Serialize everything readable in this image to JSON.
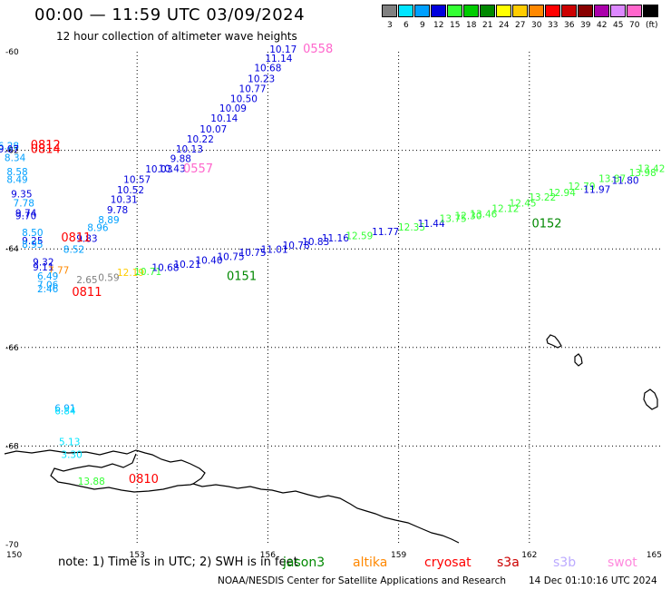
{
  "title": "00:00 — 11:59 UTC 03/09/2024",
  "subtitle": "12 hour collection of altimeter wave heights",
  "legend": {
    "unit": "(ft)",
    "entries": [
      {
        "label": "3",
        "color": "#808080"
      },
      {
        "label": "6",
        "color": "#00e5ff"
      },
      {
        "label": "9",
        "color": "#00a0ff"
      },
      {
        "label": "12",
        "color": "#0000dd"
      },
      {
        "label": "15",
        "color": "#33ff33"
      },
      {
        "label": "18",
        "color": "#00cc00"
      },
      {
        "label": "21",
        "color": "#008800"
      },
      {
        "label": "24",
        "color": "#ffff00"
      },
      {
        "label": "27",
        "color": "#ffcc00"
      },
      {
        "label": "30",
        "color": "#ff8800"
      },
      {
        "label": "33",
        "color": "#ff0000"
      },
      {
        "label": "36",
        "color": "#cc0000"
      },
      {
        "label": "39",
        "color": "#880000"
      },
      {
        "label": "42",
        "color": "#aa00aa"
      },
      {
        "label": "45",
        "color": "#dd88ff"
      },
      {
        "label": "70",
        "color": "#ff66cc"
      },
      {
        "label": "",
        "color": "#000000"
      }
    ]
  },
  "axes": {
    "lat_ticks": [
      "-60",
      "-62",
      "-64",
      "-66",
      "-68",
      "-70"
    ],
    "lon_ticks": [
      "150",
      "153",
      "156",
      "159",
      "162",
      "165"
    ]
  },
  "map": {
    "lon_range": [
      150,
      165
    ],
    "lat_range": [
      -70,
      -60
    ],
    "grid": "dotted"
  },
  "readings": [
    {
      "t": "10.17",
      "lon": 156.35,
      "lat": -60.02,
      "c": "#0000dd"
    },
    {
      "t": "11.14",
      "lon": 156.25,
      "lat": -60.2,
      "c": "#0000dd"
    },
    {
      "t": "10.68",
      "lon": 156.0,
      "lat": -60.4,
      "c": "#0000dd"
    },
    {
      "t": "10.23",
      "lon": 155.85,
      "lat": -60.62,
      "c": "#0000dd"
    },
    {
      "t": "10.77",
      "lon": 155.65,
      "lat": -60.82,
      "c": "#0000dd"
    },
    {
      "t": "10.50",
      "lon": 155.45,
      "lat": -61.02,
      "c": "#0000dd"
    },
    {
      "t": "10.09",
      "lon": 155.2,
      "lat": -61.22,
      "c": "#0000dd"
    },
    {
      "t": "10.14",
      "lon": 155.0,
      "lat": -61.42,
      "c": "#0000dd"
    },
    {
      "t": "10.07",
      "lon": 154.75,
      "lat": -61.64,
      "c": "#0000dd"
    },
    {
      "t": "10.22",
      "lon": 154.45,
      "lat": -61.84,
      "c": "#0000dd"
    },
    {
      "t": "10.13",
      "lon": 154.2,
      "lat": -62.04,
      "c": "#0000dd"
    },
    {
      "t": "9.88",
      "lon": 154.0,
      "lat": -62.24,
      "c": "#0000dd"
    },
    {
      "t": "10.43",
      "lon": 153.8,
      "lat": -62.44,
      "c": "#0000dd"
    },
    {
      "t": "10.03",
      "lon": 153.5,
      "lat": -62.45,
      "c": "#0000dd"
    },
    {
      "t": "10.57",
      "lon": 153.0,
      "lat": -62.66,
      "c": "#0000dd"
    },
    {
      "t": "10.52",
      "lon": 152.85,
      "lat": -62.87,
      "c": "#0000dd"
    },
    {
      "t": "10.31",
      "lon": 152.7,
      "lat": -63.07,
      "c": "#0000dd"
    },
    {
      "t": "9.78",
      "lon": 152.55,
      "lat": -63.28,
      "c": "#0000dd"
    },
    {
      "t": "8.89",
      "lon": 152.35,
      "lat": -63.48,
      "c": "#00a0ff"
    },
    {
      "t": "8.96",
      "lon": 152.1,
      "lat": -63.64,
      "c": "#00a0ff"
    },
    {
      "t": "9.83",
      "lon": 151.85,
      "lat": -63.86,
      "c": "#0000dd"
    },
    {
      "t": "8.52",
      "lon": 151.55,
      "lat": -64.08,
      "c": "#00a0ff"
    },
    {
      "t": "6.28",
      "lon": 150.05,
      "lat": -61.98,
      "c": "#00a0ff"
    },
    {
      "t": "9.07",
      "lon": 150.05,
      "lat": -62.04,
      "c": "#0000dd"
    },
    {
      "t": "8.34",
      "lon": 150.2,
      "lat": -62.22,
      "c": "#00a0ff"
    },
    {
      "t": "8.58",
      "lon": 150.25,
      "lat": -62.5,
      "c": "#00a0ff"
    },
    {
      "t": "8.49",
      "lon": 150.25,
      "lat": -62.66,
      "c": "#00a0ff"
    },
    {
      "t": "9.35",
      "lon": 150.35,
      "lat": -62.96,
      "c": "#0000dd"
    },
    {
      "t": "7.78",
      "lon": 150.4,
      "lat": -63.14,
      "c": "#00a0ff"
    },
    {
      "t": "9.74",
      "lon": 150.45,
      "lat": -63.34,
      "c": "#0000dd"
    },
    {
      "t": "9.70",
      "lon": 150.45,
      "lat": -63.4,
      "c": "#0000dd"
    },
    {
      "t": "8.50",
      "lon": 150.6,
      "lat": -63.74,
      "c": "#00a0ff"
    },
    {
      "t": "9.25",
      "lon": 150.6,
      "lat": -63.9,
      "c": "#0000dd"
    },
    {
      "t": "8.95",
      "lon": 150.6,
      "lat": -63.98,
      "c": "#00a0ff"
    },
    {
      "t": "9.32",
      "lon": 150.85,
      "lat": -64.34,
      "c": "#0000dd"
    },
    {
      "t": "9.11",
      "lon": 150.85,
      "lat": -64.44,
      "c": "#0000dd"
    },
    {
      "t": "7.77",
      "lon": 151.2,
      "lat": -64.5,
      "c": "#ff8800"
    },
    {
      "t": "6.49",
      "lon": 150.95,
      "lat": -64.62,
      "c": "#00a0ff"
    },
    {
      "t": "7.06",
      "lon": 150.95,
      "lat": -64.8,
      "c": "#00a0ff"
    },
    {
      "t": "2.46",
      "lon": 150.95,
      "lat": -64.88,
      "c": "#00a0ff"
    },
    {
      "t": "2.65",
      "lon": 151.85,
      "lat": -64.7,
      "c": "#808080"
    },
    {
      "t": "0.59",
      "lon": 152.35,
      "lat": -64.65,
      "c": "#808080"
    },
    {
      "t": "12.19",
      "lon": 152.85,
      "lat": -64.55,
      "c": "#ffcc00"
    },
    {
      "t": "10.71",
      "lon": 153.25,
      "lat": -64.53,
      "c": "#33ff33"
    },
    {
      "t": "10.68",
      "lon": 153.65,
      "lat": -64.45,
      "c": "#0000dd"
    },
    {
      "t": "10.21",
      "lon": 154.15,
      "lat": -64.38,
      "c": "#0000dd"
    },
    {
      "t": "10.40",
      "lon": 154.65,
      "lat": -64.3,
      "c": "#0000dd"
    },
    {
      "t": "10.75",
      "lon": 155.15,
      "lat": -64.23,
      "c": "#0000dd"
    },
    {
      "t": "10.75",
      "lon": 155.65,
      "lat": -64.14,
      "c": "#0000dd"
    },
    {
      "t": "11.01",
      "lon": 156.15,
      "lat": -64.08,
      "c": "#0000dd"
    },
    {
      "t": "10.78",
      "lon": 156.65,
      "lat": -64.0,
      "c": "#0000dd"
    },
    {
      "t": "10.83",
      "lon": 157.1,
      "lat": -63.92,
      "c": "#0000dd"
    },
    {
      "t": "11.16",
      "lon": 157.55,
      "lat": -63.85,
      "c": "#0000dd"
    },
    {
      "t": "12.59",
      "lon": 158.1,
      "lat": -63.8,
      "c": "#33ff33"
    },
    {
      "t": "11.77",
      "lon": 158.7,
      "lat": -63.72,
      "c": "#0000dd"
    },
    {
      "t": "12.35",
      "lon": 159.3,
      "lat": -63.63,
      "c": "#33ff33"
    },
    {
      "t": "11.44",
      "lon": 159.75,
      "lat": -63.55,
      "c": "#0000dd"
    },
    {
      "t": "13.75",
      "lon": 160.25,
      "lat": -63.45,
      "c": "#33ff33"
    },
    {
      "t": "12.30",
      "lon": 160.6,
      "lat": -63.4,
      "c": "#33ff33"
    },
    {
      "t": "13.46",
      "lon": 160.95,
      "lat": -63.36,
      "c": "#33ff33"
    },
    {
      "t": "12.12",
      "lon": 161.45,
      "lat": -63.25,
      "c": "#33ff33"
    },
    {
      "t": "12.45",
      "lon": 161.85,
      "lat": -63.14,
      "c": "#33ff33"
    },
    {
      "t": "13.22",
      "lon": 162.3,
      "lat": -63.02,
      "c": "#33ff33"
    },
    {
      "t": "12.94",
      "lon": 162.75,
      "lat": -62.93,
      "c": "#33ff33"
    },
    {
      "t": "12.79",
      "lon": 163.2,
      "lat": -62.8,
      "c": "#33ff33"
    },
    {
      "t": "11.97",
      "lon": 163.55,
      "lat": -62.86,
      "c": "#0000dd"
    },
    {
      "t": "13.87",
      "lon": 163.9,
      "lat": -62.64,
      "c": "#33ff33"
    },
    {
      "t": "11.80",
      "lon": 164.2,
      "lat": -62.68,
      "c": "#0000dd"
    },
    {
      "t": "13.98",
      "lon": 164.6,
      "lat": -62.52,
      "c": "#33ff33"
    },
    {
      "t": "13.42",
      "lon": 164.8,
      "lat": -62.44,
      "c": "#33ff33"
    },
    {
      "t": "6.91",
      "lon": 151.35,
      "lat": -67.3,
      "c": "#00a0ff"
    },
    {
      "t": "6.84",
      "lon": 151.35,
      "lat": -67.36,
      "c": "#00e5ff"
    },
    {
      "t": "5.13",
      "lon": 151.45,
      "lat": -67.98,
      "c": "#00e5ff"
    },
    {
      "t": "3.30",
      "lon": 151.5,
      "lat": -68.24,
      "c": "#00e5ff"
    },
    {
      "t": "13.88",
      "lon": 151.95,
      "lat": -68.78,
      "c": "#33ff33"
    }
  ],
  "passes": [
    {
      "t": "0558",
      "lon": 157.15,
      "lat": -60.02,
      "c": "#ff66cc"
    },
    {
      "t": "0557",
      "lon": 154.4,
      "lat": -62.45,
      "c": "#ff66cc"
    },
    {
      "t": "0812",
      "lon": 150.9,
      "lat": -61.97,
      "c": "#ff0000"
    },
    {
      "t": "0814",
      "lon": 150.9,
      "lat": -62.05,
      "c": "#ff0000"
    },
    {
      "t": "0811",
      "lon": 151.6,
      "lat": -63.85,
      "c": "#ff0000"
    },
    {
      "t": "0811",
      "lon": 151.85,
      "lat": -64.95,
      "c": "#ff0000"
    },
    {
      "t": "0151",
      "lon": 155.4,
      "lat": -64.63,
      "c": "#008800"
    },
    {
      "t": "0152",
      "lon": 162.4,
      "lat": -63.56,
      "c": "#008800"
    },
    {
      "t": "0810",
      "lon": 153.15,
      "lat": -68.75,
      "c": "#ff0000"
    }
  ],
  "note": "note:  1) Time is in UTC; 2) SWH is in feet",
  "satellites": [
    {
      "name": "jason3",
      "color": "#008800"
    },
    {
      "name": "altika",
      "color": "#ff8800"
    },
    {
      "name": "cryosat",
      "color": "#ff0000"
    },
    {
      "name": "s3a",
      "color": "#cc0000"
    },
    {
      "name": "s3b",
      "color": "#bbaaff"
    },
    {
      "name": "swot",
      "color": "#ff88dd"
    }
  ],
  "footer": {
    "org": "NOAA/NESDIS Center for Satellite Applications and Research",
    "timestamp": "14 Dec 01:10:16 UTC 2024"
  }
}
